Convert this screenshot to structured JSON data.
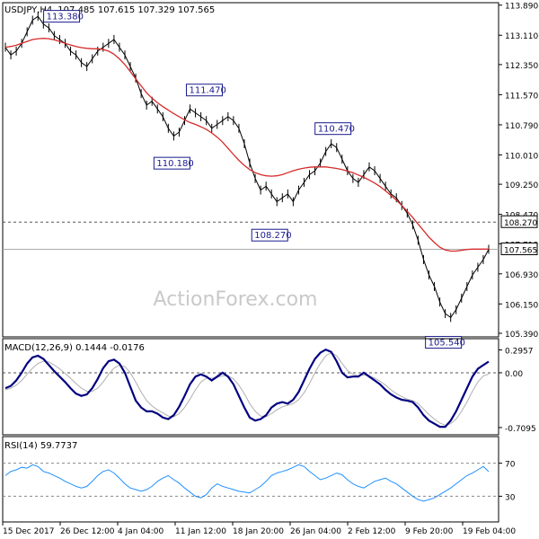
{
  "chart_data": {
    "type": "line",
    "instrument": "USDJPY,H4",
    "ohlc_header": "107.485 107.615 107.329 107.565",
    "watermark": "ActionForex.com",
    "x_labels": [
      "15 Dec 2017",
      "26 Dec 12:00",
      "4 Jan 04:00",
      "11 Jan 12:00",
      "18 Jan 20:00",
      "26 Jan 04:00",
      "2 Feb 12:00",
      "9 Feb 20:00",
      "19 Feb 04:00"
    ],
    "price_panel": {
      "y_ticks": [
        "113.890",
        "113.110",
        "112.350",
        "111.570",
        "110.790",
        "110.010",
        "109.250",
        "108.470",
        "107.710",
        "106.930",
        "106.150",
        "105.390"
      ],
      "ylim": [
        105.32,
        113.93
      ],
      "annotations": [
        {
          "label": "113.380",
          "value": 113.38
        },
        {
          "label": "111.470",
          "value": 111.47
        },
        {
          "label": "110.180",
          "value": 110.18
        },
        {
          "label": "110.470",
          "value": 110.47
        },
        {
          "label": "108.270",
          "value": 108.27
        },
        {
          "label": "105.540",
          "value": 105.54
        }
      ],
      "level_line": {
        "label": "108.270",
        "value": 108.27,
        "style": "dashed"
      },
      "current_price": {
        "label": "107.565",
        "value": 107.565
      },
      "series": [
        {
          "name": "price",
          "color": "#000000",
          "values": [
            112.8,
            112.6,
            112.7,
            112.9,
            113.2,
            113.5,
            113.6,
            113.4,
            113.3,
            113.1,
            113.0,
            112.9,
            112.7,
            112.6,
            112.4,
            112.3,
            112.5,
            112.7,
            112.8,
            112.9,
            113.0,
            112.8,
            112.6,
            112.3,
            112.0,
            111.6,
            111.3,
            111.4,
            111.2,
            111.0,
            110.7,
            110.5,
            110.6,
            110.9,
            111.2,
            111.1,
            111.0,
            110.9,
            110.7,
            110.8,
            110.9,
            111.0,
            110.9,
            110.7,
            110.3,
            109.8,
            109.4,
            109.1,
            109.2,
            109.0,
            108.8,
            108.9,
            109.0,
            108.8,
            109.1,
            109.3,
            109.5,
            109.6,
            109.8,
            110.1,
            110.3,
            110.2,
            109.9,
            109.6,
            109.4,
            109.3,
            109.5,
            109.7,
            109.6,
            109.4,
            109.2,
            109.0,
            108.9,
            108.7,
            108.5,
            108.2,
            107.8,
            107.3,
            106.9,
            106.6,
            106.2,
            105.9,
            105.8,
            106.0,
            106.3,
            106.6,
            106.9,
            107.1,
            107.3,
            107.565
          ]
        },
        {
          "name": "moving average",
          "color": "#d62b2b",
          "values": [
            112.8,
            112.82,
            112.85,
            112.9,
            112.95,
            113.0,
            113.02,
            113.03,
            113.02,
            112.99,
            112.95,
            112.9,
            112.86,
            112.82,
            112.79,
            112.77,
            112.76,
            112.76,
            112.74,
            112.7,
            112.62,
            112.5,
            112.35,
            112.17,
            111.98,
            111.8,
            111.62,
            111.48,
            111.36,
            111.26,
            111.17,
            111.08,
            111.0,
            110.92,
            110.85,
            110.8,
            110.74,
            110.67,
            110.58,
            110.47,
            110.34,
            110.18,
            110.02,
            109.87,
            109.74,
            109.63,
            109.55,
            109.5,
            109.47,
            109.46,
            109.47,
            109.5,
            109.55,
            109.6,
            109.64,
            109.67,
            109.69,
            109.7,
            109.7,
            109.7,
            109.68,
            109.66,
            109.63,
            109.59,
            109.55,
            109.49,
            109.43,
            109.36,
            109.28,
            109.19,
            109.08,
            108.96,
            108.84,
            108.7,
            108.55,
            108.39,
            108.22,
            108.05,
            107.88,
            107.74,
            107.62,
            107.55,
            107.52,
            107.52,
            107.54,
            107.56,
            107.57,
            107.57,
            107.57,
            107.57
          ]
        }
      ]
    },
    "macd_panel": {
      "label": "MACD(12,26,9) 0.1444 -0.0176",
      "y_ticks": [
        "0.2957",
        "0.00",
        "-0.7095"
      ],
      "ylim": [
        -0.78,
        0.36
      ],
      "zero_line": 0.0,
      "series": [
        {
          "name": "MACD",
          "color": "#000080",
          "values": [
            -0.2,
            -0.17,
            -0.1,
            0.0,
            0.12,
            0.2,
            0.22,
            0.18,
            0.1,
            0.02,
            -0.05,
            -0.12,
            -0.2,
            -0.27,
            -0.3,
            -0.28,
            -0.2,
            -0.08,
            0.06,
            0.15,
            0.17,
            0.12,
            0.0,
            -0.18,
            -0.36,
            -0.45,
            -0.5,
            -0.5,
            -0.53,
            -0.58,
            -0.6,
            -0.55,
            -0.44,
            -0.3,
            -0.15,
            -0.05,
            -0.02,
            -0.05,
            -0.1,
            -0.05,
            0.0,
            -0.05,
            -0.15,
            -0.3,
            -0.45,
            -0.58,
            -0.62,
            -0.6,
            -0.55,
            -0.45,
            -0.4,
            -0.38,
            -0.4,
            -0.35,
            -0.25,
            -0.1,
            0.05,
            0.18,
            0.26,
            0.3,
            0.27,
            0.15,
            0.0,
            -0.06,
            -0.05,
            -0.05,
            0.0,
            -0.05,
            -0.1,
            -0.15,
            -0.22,
            -0.28,
            -0.32,
            -0.35,
            -0.36,
            -0.38,
            -0.45,
            -0.55,
            -0.62,
            -0.66,
            -0.7,
            -0.7,
            -0.62,
            -0.5,
            -0.35,
            -0.2,
            -0.05,
            0.05,
            0.1,
            0.1444
          ]
        },
        {
          "name": "Signal",
          "color": "#b0b0b0",
          "values": [
            -0.22,
            -0.2,
            -0.16,
            -0.1,
            -0.02,
            0.06,
            0.12,
            0.15,
            0.14,
            0.1,
            0.05,
            -0.01,
            -0.07,
            -0.14,
            -0.2,
            -0.24,
            -0.24,
            -0.2,
            -0.12,
            -0.02,
            0.06,
            0.1,
            0.08,
            0.0,
            -0.12,
            -0.25,
            -0.36,
            -0.43,
            -0.48,
            -0.52,
            -0.56,
            -0.57,
            -0.53,
            -0.45,
            -0.34,
            -0.22,
            -0.12,
            -0.07,
            -0.07,
            -0.06,
            -0.04,
            -0.04,
            -0.08,
            -0.16,
            -0.27,
            -0.4,
            -0.5,
            -0.56,
            -0.57,
            -0.53,
            -0.48,
            -0.44,
            -0.42,
            -0.4,
            -0.35,
            -0.26,
            -0.14,
            0.0,
            0.12,
            0.22,
            0.26,
            0.22,
            0.12,
            0.03,
            -0.02,
            -0.04,
            -0.03,
            -0.04,
            -0.07,
            -0.11,
            -0.16,
            -0.22,
            -0.27,
            -0.31,
            -0.34,
            -0.36,
            -0.4,
            -0.47,
            -0.54,
            -0.6,
            -0.65,
            -0.68,
            -0.66,
            -0.6,
            -0.5,
            -0.38,
            -0.24,
            -0.12,
            -0.04,
            -0.0176
          ]
        }
      ]
    },
    "rsi_panel": {
      "label": "RSI(14) 59.7737",
      "y_ticks": [
        "70",
        "30"
      ],
      "ylim": [
        0,
        100
      ],
      "levels": [
        70,
        30
      ],
      "series": [
        {
          "name": "RSI",
          "color": "#1e90ff",
          "values": [
            55,
            60,
            62,
            65,
            64,
            68,
            66,
            60,
            58,
            55,
            52,
            48,
            45,
            42,
            40,
            42,
            48,
            55,
            60,
            62,
            58,
            52,
            45,
            40,
            38,
            36,
            38,
            42,
            48,
            52,
            55,
            50,
            46,
            40,
            35,
            30,
            28,
            32,
            40,
            45,
            42,
            40,
            38,
            36,
            35,
            34,
            38,
            42,
            48,
            55,
            58,
            60,
            62,
            65,
            68,
            66,
            60,
            55,
            50,
            52,
            55,
            58,
            56,
            50,
            45,
            42,
            40,
            44,
            48,
            50,
            52,
            48,
            45,
            40,
            35,
            30,
            26,
            24,
            26,
            28,
            32,
            36,
            40,
            45,
            50,
            55,
            58,
            62,
            66,
            59.77
          ]
        }
      ]
    }
  }
}
